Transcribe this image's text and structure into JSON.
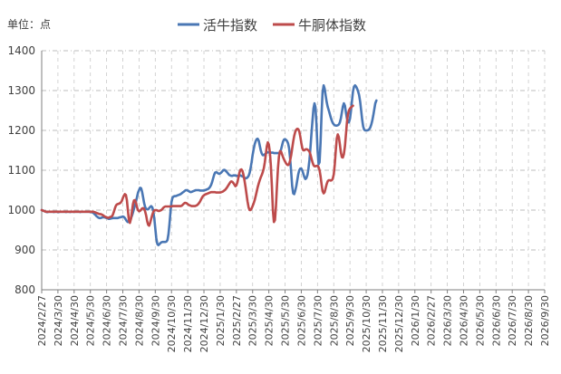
{
  "unit_label": "单位：点",
  "chart_data": {
    "type": "line",
    "title": "",
    "xlabel": "",
    "ylabel": "",
    "legend_position": "top-center",
    "grid": true,
    "ylim": [
      800,
      1400
    ],
    "yticks": [
      800,
      900,
      1000,
      1100,
      1200,
      1300,
      1400
    ],
    "xticks": [
      "2024/2/27",
      "2024/3/30",
      "2024/4/30",
      "2024/5/30",
      "2024/6/30",
      "2024/7/30",
      "2024/8/30",
      "2024/9/30",
      "2024/10/30",
      "2024/11/30",
      "2024/12/30",
      "2025/1/30",
      "2025/2/27",
      "2025/3/30",
      "2025/4/30",
      "2025/5/30",
      "2025/6/30",
      "2025/7/30",
      "2025/8/30",
      "2025/9/30",
      "2025/10/30",
      "2025/11/30",
      "2025/12/30",
      "2026/1/30",
      "2026/2/27",
      "2026/3/30",
      "2026/4/30",
      "2026/5/30",
      "2026/6/30",
      "2026/7/30",
      "2026/8/30",
      "2026/9/30"
    ],
    "points_per_interval": 16,
    "series": [
      {
        "name": "活牛指数",
        "color": "#4a77b4",
        "values": [
          1000,
          999,
          998,
          997,
          996,
          995,
          995,
          996,
          996,
          996,
          996,
          996,
          995,
          996,
          996,
          996,
          995,
          995,
          996,
          996,
          996,
          996,
          996,
          996,
          995,
          996,
          996,
          996,
          995,
          996,
          996,
          996,
          996,
          996,
          996,
          996,
          996,
          996,
          995,
          996,
          996,
          996,
          996,
          996,
          996,
          996,
          996,
          996,
          995,
          995,
          994,
          993,
          990,
          988,
          985,
          983,
          981,
          980,
          980,
          981,
          982,
          982,
          982,
          981,
          980,
          979,
          978,
          978,
          979,
          979,
          980,
          980,
          980,
          980,
          980,
          980,
          981,
          982,
          982,
          983,
          984,
          983,
          980,
          976,
          972,
          970,
          971,
          974,
          979,
          986,
          994,
          1003,
          1012,
          1022,
          1033,
          1044,
          1050,
          1056,
          1055,
          1046,
          1032,
          1018,
          1008,
          1003,
          1002,
          1002,
          1005,
          1008,
          1010,
          1007,
          998,
          980,
          955,
          930,
          915,
          912,
          914,
          917,
          919,
          920,
          920,
          920,
          920,
          921,
          925,
          940,
          965,
          995,
          1020,
          1031,
          1034,
          1035,
          1035,
          1036,
          1037,
          1038,
          1039,
          1040,
          1042,
          1044,
          1046,
          1048,
          1050,
          1050,
          1049,
          1048,
          1046,
          1045,
          1046,
          1047,
          1048,
          1049,
          1050,
          1050,
          1050,
          1050,
          1049,
          1049,
          1049,
          1049,
          1049,
          1050,
          1051,
          1052,
          1053,
          1055,
          1058,
          1063,
          1070,
          1079,
          1088,
          1094,
          1095,
          1094,
          1092,
          1091,
          1092,
          1094,
          1097,
          1100,
          1101,
          1100,
          1097,
          1094,
          1091,
          1088,
          1087,
          1086,
          1086,
          1087,
          1087,
          1087,
          1086,
          1086,
          1086,
          1086,
          1087,
          1086,
          1084,
          1083,
          1081,
          1080,
          1080,
          1082,
          1086,
          1093,
          1105,
          1120,
          1138,
          1153,
          1165,
          1173,
          1178,
          1179,
          1174,
          1162,
          1150,
          1142,
          1138,
          1138,
          1140,
          1142,
          1144,
          1145,
          1145,
          1144,
          1144,
          1144,
          1144,
          1143,
          1143,
          1143,
          1143,
          1143,
          1143,
          1146,
          1152,
          1162,
          1172,
          1177,
          1178,
          1176,
          1173,
          1167,
          1155,
          1130,
          1095,
          1060,
          1042,
          1040,
          1048,
          1060,
          1075,
          1090,
          1100,
          1104,
          1104,
          1099,
          1091,
          1083,
          1078,
          1080,
          1088,
          1103,
          1125,
          1155,
          1190,
          1225,
          1255,
          1268,
          1258,
          1215,
          1150,
          1115,
          1120,
          1170,
          1240,
          1295,
          1313,
          1305,
          1288,
          1272,
          1260,
          1251,
          1242,
          1233,
          1225,
          1219,
          1215,
          1213,
          1212,
          1212,
          1213,
          1215,
          1220,
          1230,
          1245,
          1260,
          1268,
          1262,
          1245,
          1230,
          1222,
          1220,
          1230,
          1250,
          1275,
          1298,
          1310,
          1313,
          1310,
          1305,
          1298,
          1289,
          1272,
          1250,
          1227,
          1210,
          1202,
          1200,
          1200,
          1200,
          1201,
          1203,
          1207,
          1215,
          1225,
          1238,
          1253,
          1268,
          1275
        ]
      },
      {
        "name": "牛胴体指数",
        "color": "#bd4b4b",
        "values": [
          1000,
          999,
          998,
          997,
          996,
          996,
          996,
          996,
          996,
          996,
          996,
          996,
          996,
          996,
          996,
          996,
          996,
          996,
          996,
          996,
          996,
          996,
          996,
          996,
          996,
          996,
          996,
          996,
          996,
          996,
          996,
          996,
          996,
          996,
          996,
          996,
          996,
          996,
          996,
          996,
          996,
          996,
          996,
          996,
          996,
          996,
          996,
          996,
          996,
          996,
          996,
          996,
          995,
          994,
          993,
          992,
          991,
          990,
          990,
          989,
          988,
          986,
          984,
          983,
          982,
          981,
          981,
          982,
          983,
          984,
          987,
          994,
          1003,
          1010,
          1014,
          1015,
          1016,
          1017,
          1019,
          1023,
          1030,
          1036,
          1040,
          1038,
          1025,
          1000,
          975,
          968,
          978,
          997,
          1015,
          1024,
          1025,
          1018,
          1007,
          1000,
          997,
          998,
          1001,
          1004,
          1005,
          1003,
          997,
          986,
          972,
          963,
          961,
          968,
          978,
          988,
          995,
          999,
          1000,
          1000,
          999,
          998,
          998,
          999,
          1000,
          1003,
          1006,
          1008,
          1009,
          1009,
          1009,
          1009,
          1009,
          1009,
          1009,
          1010,
          1010,
          1010,
          1010,
          1010,
          1010,
          1010,
          1010,
          1010,
          1011,
          1013,
          1016,
          1018,
          1018,
          1017,
          1015,
          1013,
          1012,
          1011,
          1010,
          1010,
          1010,
          1010,
          1011,
          1012,
          1014,
          1017,
          1021,
          1026,
          1031,
          1035,
          1037,
          1039,
          1040,
          1041,
          1042,
          1043,
          1044,
          1045,
          1045,
          1045,
          1045,
          1045,
          1044,
          1044,
          1044,
          1044,
          1044,
          1045,
          1046,
          1047,
          1049,
          1051,
          1054,
          1058,
          1062,
          1066,
          1070,
          1072,
          1071,
          1068,
          1064,
          1060,
          1062,
          1070,
          1082,
          1094,
          1101,
          1102,
          1098,
          1088,
          1074,
          1058,
          1040,
          1022,
          1007,
          1000,
          1000,
          1004,
          1010,
          1017,
          1025,
          1035,
          1046,
          1057,
          1067,
          1075,
          1082,
          1088,
          1095,
          1105,
          1120,
          1140,
          1160,
          1170,
          1165,
          1145,
          1110,
          1060,
          1000,
          970,
          975,
          1010,
          1060,
          1105,
          1135,
          1148,
          1147,
          1140,
          1133,
          1127,
          1122,
          1117,
          1114,
          1113,
          1116,
          1124,
          1138,
          1155,
          1172,
          1186,
          1196,
          1202,
          1204,
          1203,
          1198,
          1185,
          1168,
          1155,
          1150,
          1150,
          1152,
          1153,
          1152,
          1150,
          1147,
          1140,
          1130,
          1120,
          1113,
          1110,
          1110,
          1111,
          1111,
          1108,
          1100,
          1085,
          1065,
          1048,
          1042,
          1045,
          1055,
          1065,
          1072,
          1075,
          1075,
          1074,
          1075,
          1078,
          1090,
          1115,
          1150,
          1180,
          1190,
          1183,
          1165,
          1145,
          1133,
          1132,
          1140,
          1160,
          1190,
          1220,
          1240,
          1250,
          1255,
          1258,
          1260,
          1262
        ]
      }
    ]
  }
}
